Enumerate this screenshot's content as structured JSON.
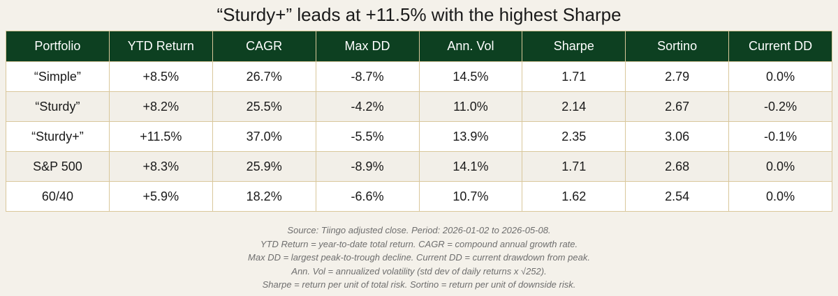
{
  "title": "“Sturdy+” leads at +11.5% with the highest Sharpe",
  "chart_data": {
    "type": "table",
    "title": "“Sturdy+” leads at +11.5% with the highest Sharpe",
    "columns": [
      "Portfolio",
      "YTD Return",
      "CAGR",
      "Max DD",
      "Ann. Vol",
      "Sharpe",
      "Sortino",
      "Current DD"
    ],
    "rows": [
      [
        "“Simple”",
        "+8.5%",
        "26.7%",
        "-8.7%",
        "14.5%",
        "1.71",
        "2.79",
        "0.0%"
      ],
      [
        "“Sturdy”",
        "+8.2%",
        "25.5%",
        "-4.2%",
        "11.0%",
        "2.14",
        "2.67",
        "-0.2%"
      ],
      [
        "“Sturdy+”",
        "+11.5%",
        "37.0%",
        "-5.5%",
        "13.9%",
        "2.35",
        "3.06",
        "-0.1%"
      ],
      [
        "S&P 500",
        "+8.3%",
        "25.9%",
        "-8.9%",
        "14.1%",
        "1.71",
        "2.68",
        "0.0%"
      ],
      [
        "60/40",
        "+5.9%",
        "18.2%",
        "-6.6%",
        "10.7%",
        "1.62",
        "2.54",
        "0.0%"
      ]
    ]
  },
  "footnotes": [
    "Source: Tiingo adjusted close. Period: 2026-01-02 to 2026-05-08.",
    "YTD Return = year-to-date total return. CAGR = compound annual growth rate.",
    "Max DD = largest peak-to-trough decline. Current DD = current drawdown from peak.",
    "Ann. Vol = annualized volatility (std dev of daily returns x √252).",
    "Sharpe = return per unit of total risk. Sortino = return per unit of downside risk."
  ],
  "colors": {
    "header_bg": "#0d4021",
    "header_text": "#ffffff",
    "border": "#d9c79b",
    "row_light": "#ffffff",
    "row_dark": "#f2efe8",
    "page_bg": "#f4f1ea"
  }
}
